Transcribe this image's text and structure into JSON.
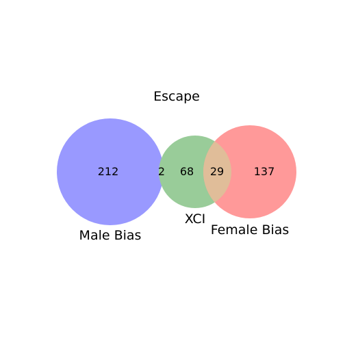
{
  "title": "Escape",
  "sets": [
    {
      "id": "male",
      "label": "Male Bias",
      "color": "#9999ff"
    },
    {
      "id": "xci",
      "label": "XCI",
      "color": "#99cc99"
    },
    {
      "id": "female",
      "label": "Female Bias",
      "color": "#ff9999"
    }
  ],
  "overlap_color": "#e0bd99",
  "regions": {
    "male_only": "212",
    "male_xci": "2",
    "xci_only": "68",
    "xci_female": "29",
    "female_only": "137"
  }
}
